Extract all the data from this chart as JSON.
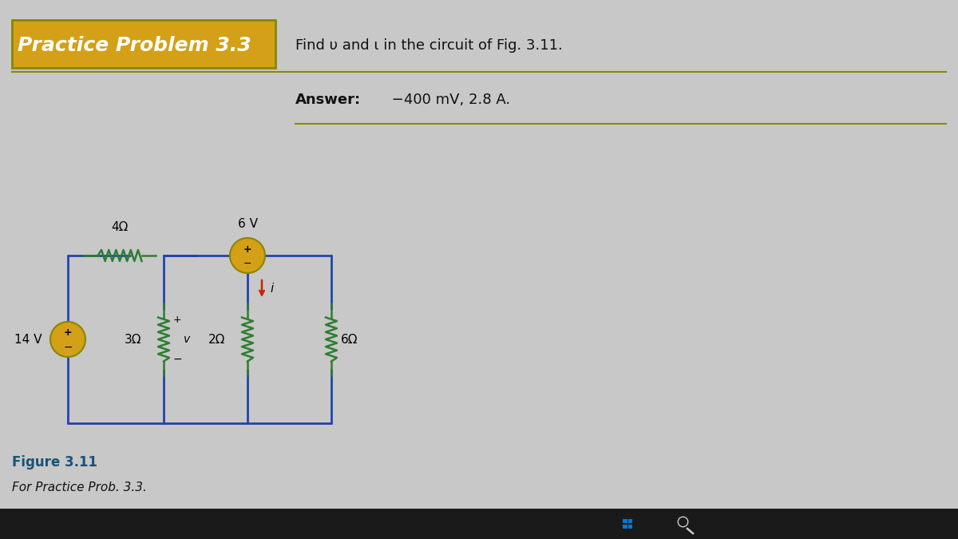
{
  "title": "Practice Problem 3.3",
  "title_bg": "#D4A017",
  "problem_text": "Find υ and ι in the circuit of Fig. 3.11.",
  "answer_label": "Answer:",
  "answer_text": " −400 mV, 2.8 A.",
  "figure_label": "Figure 3.11",
  "figure_caption": "For Practice Prob. 3.3.",
  "bg_color": "#C8C8C8",
  "content_bg": "#D8D8D8",
  "circuit_bg": "#D8D8D8",
  "line_color": "#2244AA",
  "resistor_color": "#2E7D32",
  "source_color": "#D4A017",
  "current_color": "#CC2200",
  "text_color": "#111111",
  "answer_bold_color": "#111111"
}
